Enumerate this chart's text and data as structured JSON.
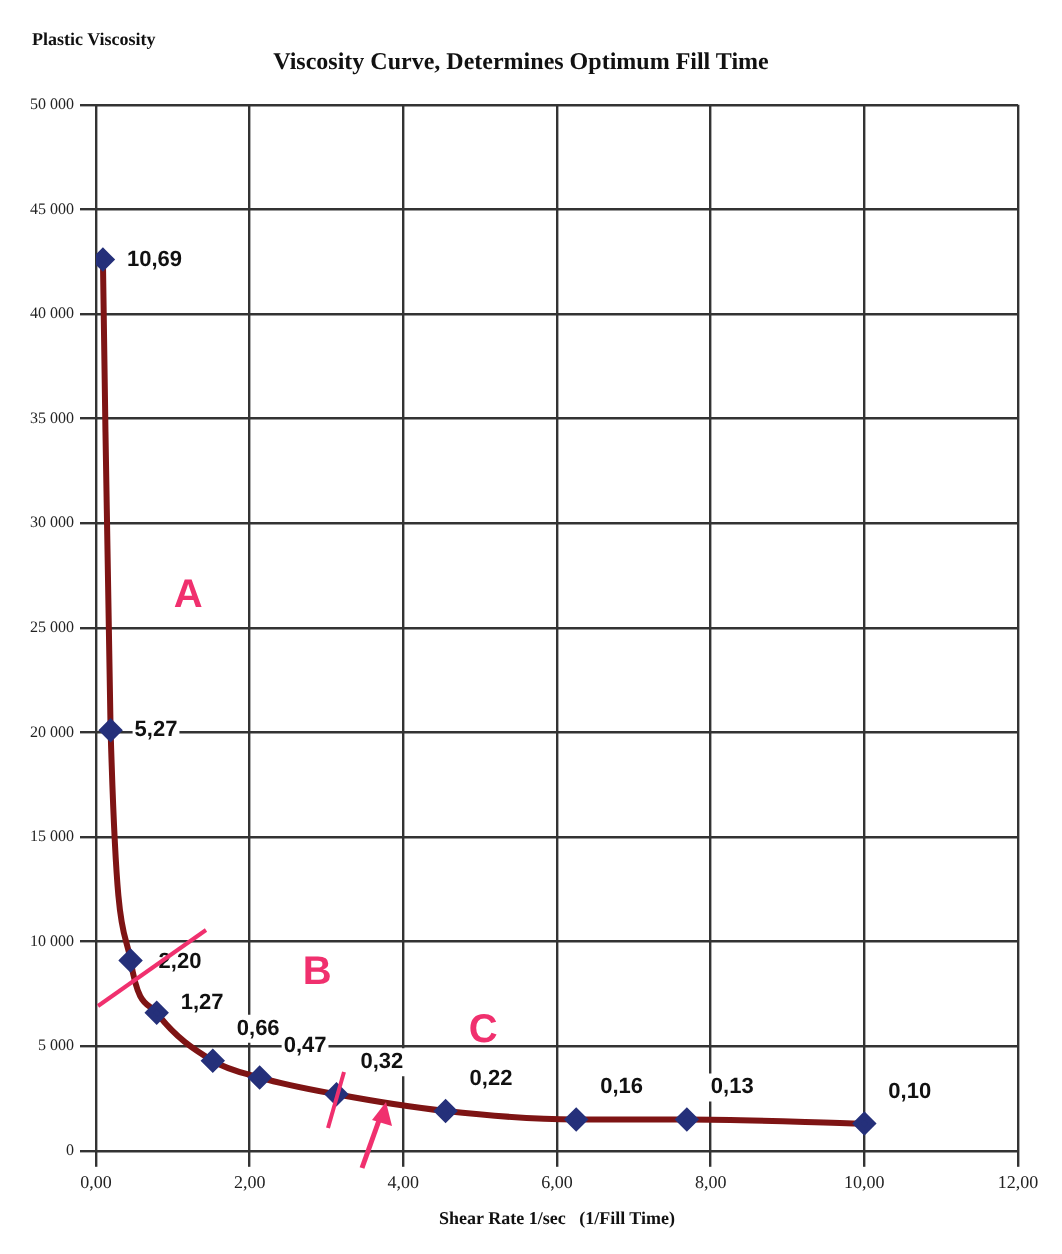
{
  "chart_data": {
    "type": "line",
    "title": "Viscosity Curve, Determines Optimum Fill Time",
    "ylabel": "Plastic Viscosity",
    "xlabel": "Shear Rate 1/sec   (1/Fill Time)",
    "x": [
      0.09,
      0.19,
      0.45,
      0.79,
      1.52,
      2.13,
      3.13,
      4.55,
      6.25,
      7.69,
      10.0
    ],
    "series": [
      {
        "color": "#7e1414",
        "colors": [
          "#25307a",
          "#25307a",
          "#25307a",
          "#25307a",
          "#25307a",
          "#25307a",
          "#25307a",
          "#25307a",
          "#25307a",
          "#25307a",
          "#25307a"
        ],
        "values": [
          42600,
          20100,
          9100,
          6600,
          4300,
          3500,
          2700,
          1900,
          1500,
          1500,
          1300
        ]
      }
    ],
    "xlim": [
      0,
      12
    ],
    "xticks": [
      {
        "value": 0,
        "label": "0,00"
      },
      {
        "value": 2,
        "label": "2,00"
      },
      {
        "value": 4,
        "label": "4,00"
      },
      {
        "value": 6,
        "label": "6,00"
      },
      {
        "value": 8,
        "label": "8,00"
      },
      {
        "value": 10,
        "label": "10,00"
      },
      {
        "value": 12,
        "label": "12,00"
      }
    ],
    "ylim": [
      0,
      50000
    ],
    "yticks": [
      {
        "value": 0,
        "label": "0"
      },
      {
        "value": 5000,
        "label": "5 000"
      },
      {
        "value": 10000,
        "label": "10 000"
      },
      {
        "value": 15000,
        "label": "15 000"
      },
      {
        "value": 20000,
        "label": "20 000"
      },
      {
        "value": 25000,
        "label": "25 000"
      },
      {
        "value": 30000,
        "label": "30 000"
      },
      {
        "value": 35000,
        "label": "35 000"
      },
      {
        "value": 40000,
        "label": "40 000"
      },
      {
        "value": 45000,
        "label": "45 000"
      },
      {
        "value": 50000,
        "label": "50 000"
      }
    ],
    "annotations": [
      "A",
      "B",
      "C",
      {
        "text": "10,69",
        "x": 0.09,
        "y": 42600
      },
      {
        "text": "5,27",
        "x": 0.19,
        "y": 20100
      },
      {
        "text": "2,20",
        "x": 0.45,
        "y": 9100
      },
      {
        "text": "1,27",
        "x": 0.79,
        "y": 6600
      },
      {
        "text": "0,66",
        "x": 1.52,
        "y": 4300
      },
      {
        "text": "0,47",
        "x": 2.13,
        "y": 3500
      },
      {
        "text": "0,32",
        "x": 3.13,
        "y": 2700
      },
      {
        "text": "0,22",
        "x": 4.55,
        "y": 1900
      },
      {
        "text": "0,16",
        "x": 6.25,
        "y": 1500
      },
      {
        "text": "0,13",
        "x": 7.69,
        "y": 1500
      },
      {
        "text": "0,10",
        "x": 10.0,
        "y": 1300
      }
    ],
    "grid": true,
    "legend": false,
    "marker": "diamond",
    "line_style": "solid"
  }
}
